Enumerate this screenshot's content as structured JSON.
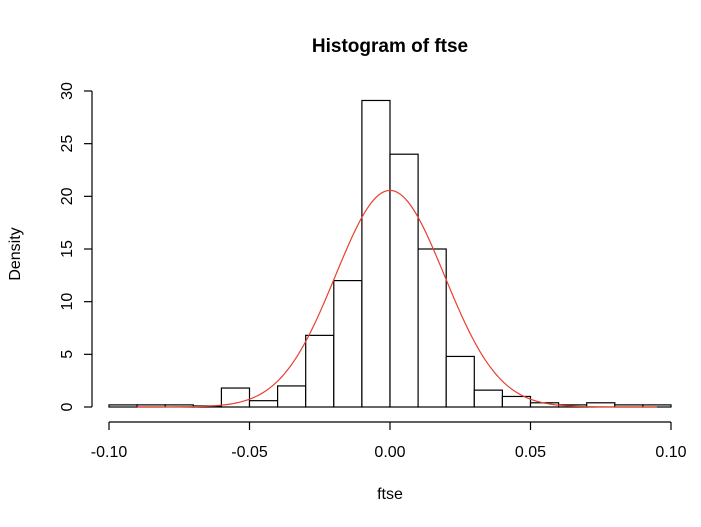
{
  "chart_data": {
    "type": "bar",
    "title": "Histogram of ftse",
    "xlabel": "ftse",
    "ylabel": "Density",
    "xlim": [
      -0.1,
      0.1
    ],
    "ylim": [
      0,
      30
    ],
    "x_ticks": [
      "-0.10",
      "-0.05",
      "0.00",
      "0.05",
      "0.10"
    ],
    "y_ticks": [
      "0",
      "5",
      "10",
      "15",
      "20",
      "25",
      "30"
    ],
    "bin_edges": [
      -0.1,
      -0.09,
      -0.08,
      -0.07,
      -0.06,
      -0.05,
      -0.04,
      -0.03,
      -0.02,
      -0.01,
      0.0,
      0.01,
      0.02,
      0.03,
      0.04,
      0.05,
      0.06,
      0.07,
      0.08,
      0.09,
      0.1
    ],
    "values": [
      0.2,
      0.2,
      0.2,
      0.1,
      1.8,
      0.6,
      2.0,
      6.8,
      12.0,
      29.1,
      24.0,
      15.0,
      4.8,
      1.6,
      1.0,
      0.4,
      0.2,
      0.4,
      0.2,
      0.2
    ],
    "curve": {
      "type": "normal-density",
      "mean": 0.0,
      "sd": 0.0194,
      "range": [
        -0.09,
        0.095
      ],
      "color": "#e8402f"
    },
    "grid": false
  }
}
